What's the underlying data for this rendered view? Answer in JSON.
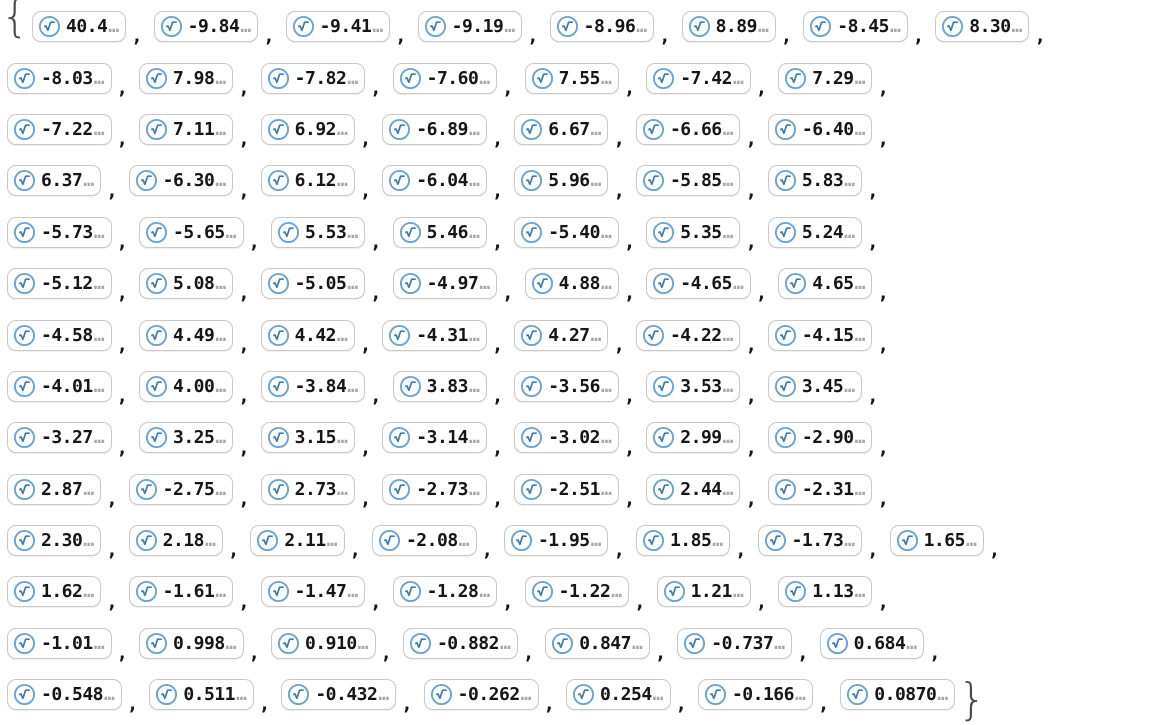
{
  "output_cell": {
    "description_visible_text_only": "list of truncated numeric root approximations",
    "open_brace": "{",
    "close_brace": "}",
    "separator": ",",
    "ellipsis": "…",
    "icon": {
      "name": "root-radical-icon",
      "circle_color": "#6aa3d3",
      "glyph_color": "#3d7cb0",
      "fill_color": "#ffffff"
    },
    "colors": {
      "box_border": "#c9c9c9",
      "number_text": "#161616",
      "ellipsis_text": "#a8a8a8",
      "brace_text": "#4a4a4a"
    },
    "rows": [
      [
        "40.4",
        "-9.84",
        "-9.41",
        "-9.19",
        "-8.96",
        "8.89",
        "-8.45",
        "8.30"
      ],
      [
        "-8.03",
        "7.98",
        "-7.82",
        "-7.60",
        "7.55",
        "-7.42",
        "7.29"
      ],
      [
        "-7.22",
        "7.11",
        "6.92",
        "-6.89",
        "6.67",
        "-6.66",
        "-6.40"
      ],
      [
        "6.37",
        "-6.30",
        "6.12",
        "-6.04",
        "5.96",
        "-5.85",
        "5.83"
      ],
      [
        "-5.73",
        "-5.65",
        "5.53",
        "5.46",
        "-5.40",
        "5.35",
        "5.24"
      ],
      [
        "-5.12",
        "5.08",
        "-5.05",
        "-4.97",
        "4.88",
        "-4.65",
        "4.65"
      ],
      [
        "-4.58",
        "4.49",
        "4.42",
        "-4.31",
        "4.27",
        "-4.22",
        "-4.15"
      ],
      [
        "-4.01",
        "4.00",
        "-3.84",
        "3.83",
        "-3.56",
        "3.53",
        "3.45"
      ],
      [
        "-3.27",
        "3.25",
        "3.15",
        "-3.14",
        "-3.02",
        "2.99",
        "-2.90"
      ],
      [
        "2.87",
        "-2.75",
        "2.73",
        "-2.73",
        "-2.51",
        "2.44",
        "-2.31"
      ],
      [
        "2.30",
        "2.18",
        "2.11",
        "-2.08",
        "-1.95",
        "1.85",
        "-1.73",
        "1.65"
      ],
      [
        "1.62",
        "-1.61",
        "-1.47",
        "-1.28",
        "-1.22",
        "1.21",
        "1.13"
      ],
      [
        "-1.01",
        "0.998",
        "0.910",
        "-0.882",
        "0.847",
        "-0.737",
        "0.684"
      ],
      [
        "-0.548",
        "0.511",
        "-0.432",
        "-0.262",
        "0.254",
        "-0.166",
        "0.0870"
      ]
    ]
  }
}
